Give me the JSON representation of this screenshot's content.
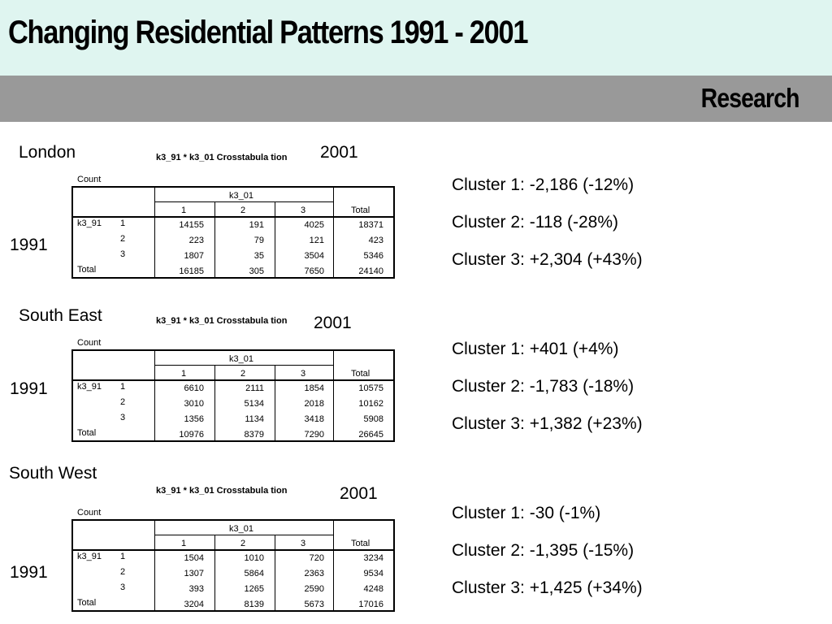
{
  "header": {
    "title": "Changing Residential Patterns 1991 - 2001",
    "subtitle": "Research"
  },
  "common": {
    "crosstab_title": "k3_91 * k3_01 Crosstabula tion",
    "count_label": "Count",
    "col_var": "k3_01",
    "row_var": "k3_91",
    "col_headers": [
      "1",
      "2",
      "3",
      "Total"
    ],
    "row_labels": [
      "1",
      "2",
      "3"
    ],
    "total_label": "Total",
    "year_top": "2001",
    "year_side": "1991"
  },
  "sections": [
    {
      "region": "London",
      "rows": [
        [
          "14155",
          "191",
          "4025",
          "18371"
        ],
        [
          "223",
          "79",
          "121",
          "423"
        ],
        [
          "1807",
          "35",
          "3504",
          "5346"
        ]
      ],
      "totals": [
        "16185",
        "305",
        "7650",
        "24140"
      ],
      "stats": [
        "Cluster 1: -2,186 (-12%)",
        "Cluster 2: -118 (-28%)",
        "Cluster 3: +2,304 (+43%)"
      ]
    },
    {
      "region": "South East",
      "rows": [
        [
          "6610",
          "2111",
          "1854",
          "10575"
        ],
        [
          "3010",
          "5134",
          "2018",
          "10162"
        ],
        [
          "1356",
          "1134",
          "3418",
          "5908"
        ]
      ],
      "totals": [
        "10976",
        "8379",
        "7290",
        "26645"
      ],
      "stats": [
        "Cluster 1: +401 (+4%)",
        "Cluster 2: -1,783 (-18%)",
        "Cluster 3: +1,382 (+23%)"
      ]
    },
    {
      "region": "South West",
      "rows": [
        [
          "1504",
          "1010",
          "720",
          "3234"
        ],
        [
          "1307",
          "5864",
          "2363",
          "9534"
        ],
        [
          "393",
          "1265",
          "2590",
          "4248"
        ]
      ],
      "totals": [
        "3204",
        "8139",
        "5673",
        "17016"
      ],
      "stats": [
        "Cluster 1: -30 (-1%)",
        "Cluster 2: -1,395 (-15%)",
        "Cluster 3: +1,425 (+34%)"
      ]
    }
  ]
}
